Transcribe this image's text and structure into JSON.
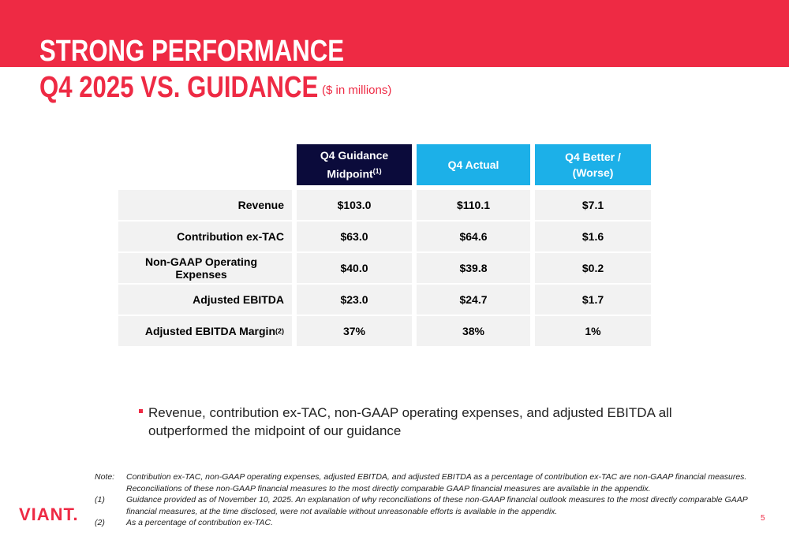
{
  "header": {
    "title": "STRONG PERFORMANCE",
    "subtitle": "Q4 2025 VS. GUIDANCE",
    "unit": "($ in millions)"
  },
  "table": {
    "columns": [
      {
        "text": "Q4 Guidance Midpoint",
        "note": "(1)"
      },
      {
        "text": "Q4 Actual"
      },
      {
        "text": "Q4 Better / (Worse)"
      }
    ],
    "rows": [
      {
        "label": "Revenue",
        "cells": [
          "$103.0",
          "$110.1",
          "$7.1"
        ]
      },
      {
        "label": "Contribution ex-TAC",
        "cells": [
          "$63.0",
          "$64.6",
          "$1.6"
        ]
      },
      {
        "label": "Non-GAAP Operating Expenses",
        "cells": [
          "$40.0",
          "$39.8",
          "$0.2"
        ]
      },
      {
        "label": "Adjusted EBITDA",
        "cells": [
          "$23.0",
          "$24.7",
          "$1.7"
        ]
      },
      {
        "label": "Adjusted EBITDA Margin",
        "note": "(2)",
        "cells": [
          "37%",
          "38%",
          "1%"
        ]
      }
    ]
  },
  "bullets": [
    "Revenue, contribution ex-TAC, non-GAAP operating expenses, and adjusted EBITDA all outperformed the midpoint of our guidance"
  ],
  "notes": [
    {
      "marker": "Note:",
      "text": "Contribution ex-TAC, non-GAAP operating expenses, adjusted EBITDA, and adjusted EBITDA as a percentage of contribution ex-TAC are non-GAAP financial measures. Reconciliations of these non-GAAP financial measures to the most directly comparable GAAP financial measures are available in the appendix."
    },
    {
      "marker": "(1)",
      "text": "Guidance provided as of November 10, 2025. An explanation of why reconciliations of these non-GAAP financial outlook measures to the most directly comparable GAAP financial measures, at the time disclosed, were not available without unreasonable efforts is available in the appendix."
    },
    {
      "marker": "(2)",
      "text": "As a percentage of contribution ex-TAC."
    }
  ],
  "footer": {
    "logo": "VIANT.",
    "page": "5"
  }
}
